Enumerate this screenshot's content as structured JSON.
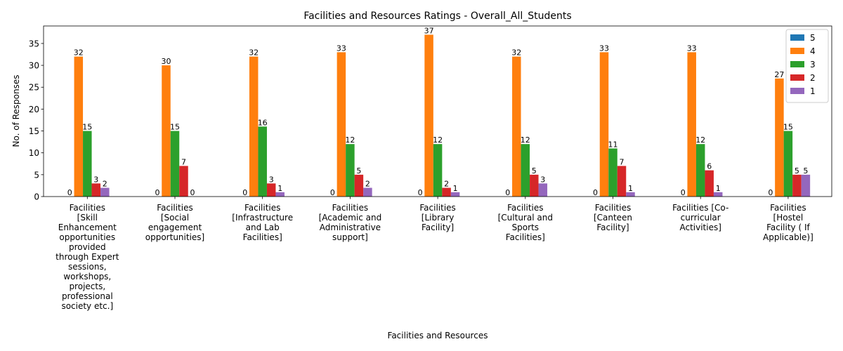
{
  "chart_data": {
    "type": "bar",
    "title": "Facilities and Resources Ratings - Overall_All_Students",
    "xlabel": "Facilities and Resources",
    "ylabel": "No. of Responses",
    "ylim": [
      0,
      39
    ],
    "yticks": [
      0,
      5,
      10,
      15,
      20,
      25,
      30,
      35
    ],
    "legend_position": "top-right",
    "grid": false,
    "categories": [
      [
        "Facilities",
        "[Skill",
        "Enhancement",
        "opportunities",
        "provided",
        "through Expert",
        "sessions,",
        "workshops,",
        "projects,",
        "professional",
        "society etc.]"
      ],
      [
        "Facilities",
        "[Social",
        "engagement",
        "opportunities]"
      ],
      [
        "Facilities",
        "[Infrastructure",
        "and Lab",
        "Facilities]"
      ],
      [
        "Facilities",
        "[Academic and",
        "Administrative",
        "support]"
      ],
      [
        "Facilities",
        "[Library",
        "Facility]"
      ],
      [
        "Facilities",
        "[Cultural and",
        "Sports",
        "Facilities]"
      ],
      [
        "Facilities",
        "[Canteen",
        "Facility]"
      ],
      [
        "Facilities [Co-",
        "curricular",
        "Activities]"
      ],
      [
        "Facilities",
        "[Hostel",
        "Facility ( If",
        "Applicable)]"
      ]
    ],
    "series": [
      {
        "name": "5",
        "color": "#1f77b4",
        "values": [
          0,
          0,
          0,
          0,
          0,
          0,
          0,
          0,
          0
        ]
      },
      {
        "name": "4",
        "color": "#ff7f0e",
        "values": [
          32,
          30,
          32,
          33,
          37,
          32,
          33,
          33,
          27
        ]
      },
      {
        "name": "3",
        "color": "#2ca02c",
        "values": [
          15,
          15,
          16,
          12,
          12,
          12,
          11,
          12,
          15
        ]
      },
      {
        "name": "2",
        "color": "#d62728",
        "values": [
          3,
          7,
          3,
          5,
          2,
          5,
          7,
          6,
          5
        ]
      },
      {
        "name": "1",
        "color": "#9467bd",
        "values": [
          2,
          0,
          1,
          2,
          1,
          3,
          1,
          1,
          5
        ]
      }
    ]
  }
}
